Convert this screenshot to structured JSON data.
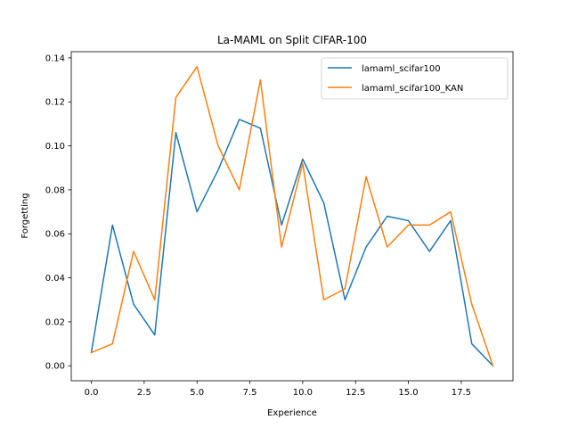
{
  "chart_data": {
    "type": "line",
    "title": "La-MAML on Split CIFAR-100",
    "xlabel": "Experience",
    "ylabel": "Forgetting",
    "xlim": [
      -0.95,
      19.95
    ],
    "ylim": [
      -0.0068,
      0.1428
    ],
    "xticks": [
      0.0,
      2.5,
      5.0,
      7.5,
      10.0,
      12.5,
      15.0,
      17.5
    ],
    "xtick_labels": [
      "0.0",
      "2.5",
      "5.0",
      "7.5",
      "10.0",
      "12.5",
      "15.0",
      "17.5"
    ],
    "yticks": [
      0.0,
      0.02,
      0.04,
      0.06,
      0.08,
      0.1,
      0.12,
      0.14
    ],
    "ytick_labels": [
      "0.00",
      "0.02",
      "0.04",
      "0.06",
      "0.08",
      "0.10",
      "0.12",
      "0.14"
    ],
    "grid": false,
    "legend_position": "top-right",
    "x": [
      0,
      1,
      2,
      3,
      4,
      5,
      6,
      7,
      8,
      9,
      10,
      11,
      12,
      13,
      14,
      15,
      16,
      17,
      18,
      19
    ],
    "series": [
      {
        "name": "lamaml_scifar100",
        "color": "#1f77b4",
        "values": [
          0.006,
          0.064,
          0.028,
          0.014,
          0.106,
          0.07,
          0.089,
          0.112,
          0.108,
          0.064,
          0.094,
          0.074,
          0.03,
          0.054,
          0.068,
          0.066,
          0.052,
          0.066,
          0.01,
          0.0
        ]
      },
      {
        "name": "lamaml_scifar100_KAN",
        "color": "#ff7f0e",
        "values": [
          0.006,
          0.01,
          0.052,
          0.03,
          0.122,
          0.136,
          0.1,
          0.08,
          0.13,
          0.054,
          0.092,
          0.03,
          0.035,
          0.086,
          0.054,
          0.064,
          0.064,
          0.07,
          0.028,
          0.0
        ]
      }
    ]
  }
}
